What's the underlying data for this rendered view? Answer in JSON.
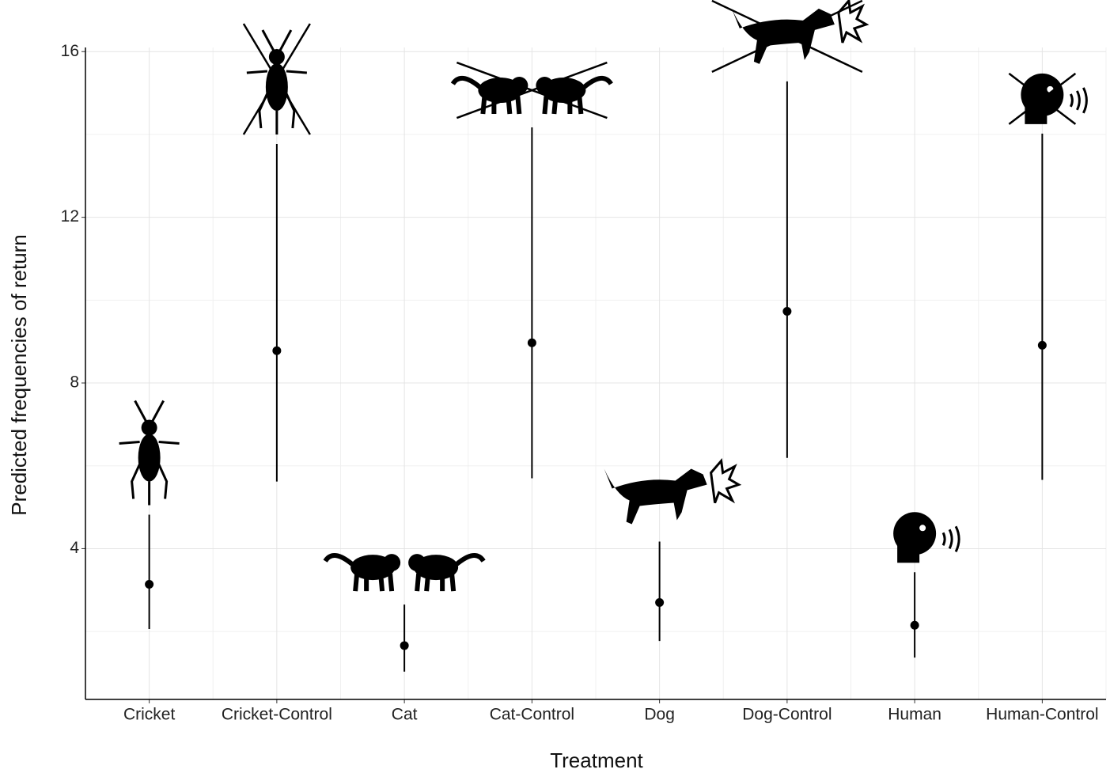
{
  "chart_data": {
    "type": "pointrange",
    "x_label": "Treatment",
    "y_label": "Predicted frequencies of return",
    "categories": [
      "Cricket",
      "Cricket-Control",
      "Cat",
      "Cat-Control",
      "Dog",
      "Dog-Control",
      "Human",
      "Human-Control"
    ],
    "values": [
      3.14,
      8.78,
      1.66,
      8.97,
      2.7,
      9.73,
      2.15,
      8.91
    ],
    "lower": [
      2.06,
      5.62,
      1.03,
      5.7,
      1.77,
      6.19,
      1.37,
      5.66
    ],
    "upper": [
      4.82,
      13.77,
      2.65,
      14.17,
      4.17,
      15.28,
      3.43,
      14.02
    ],
    "color": "#000000",
    "ylim": [
      0.36,
      16.1
    ],
    "yticks": [
      4,
      8,
      12,
      16
    ],
    "minor_yticks": [
      2,
      6,
      10,
      14
    ],
    "grid": true
  }
}
